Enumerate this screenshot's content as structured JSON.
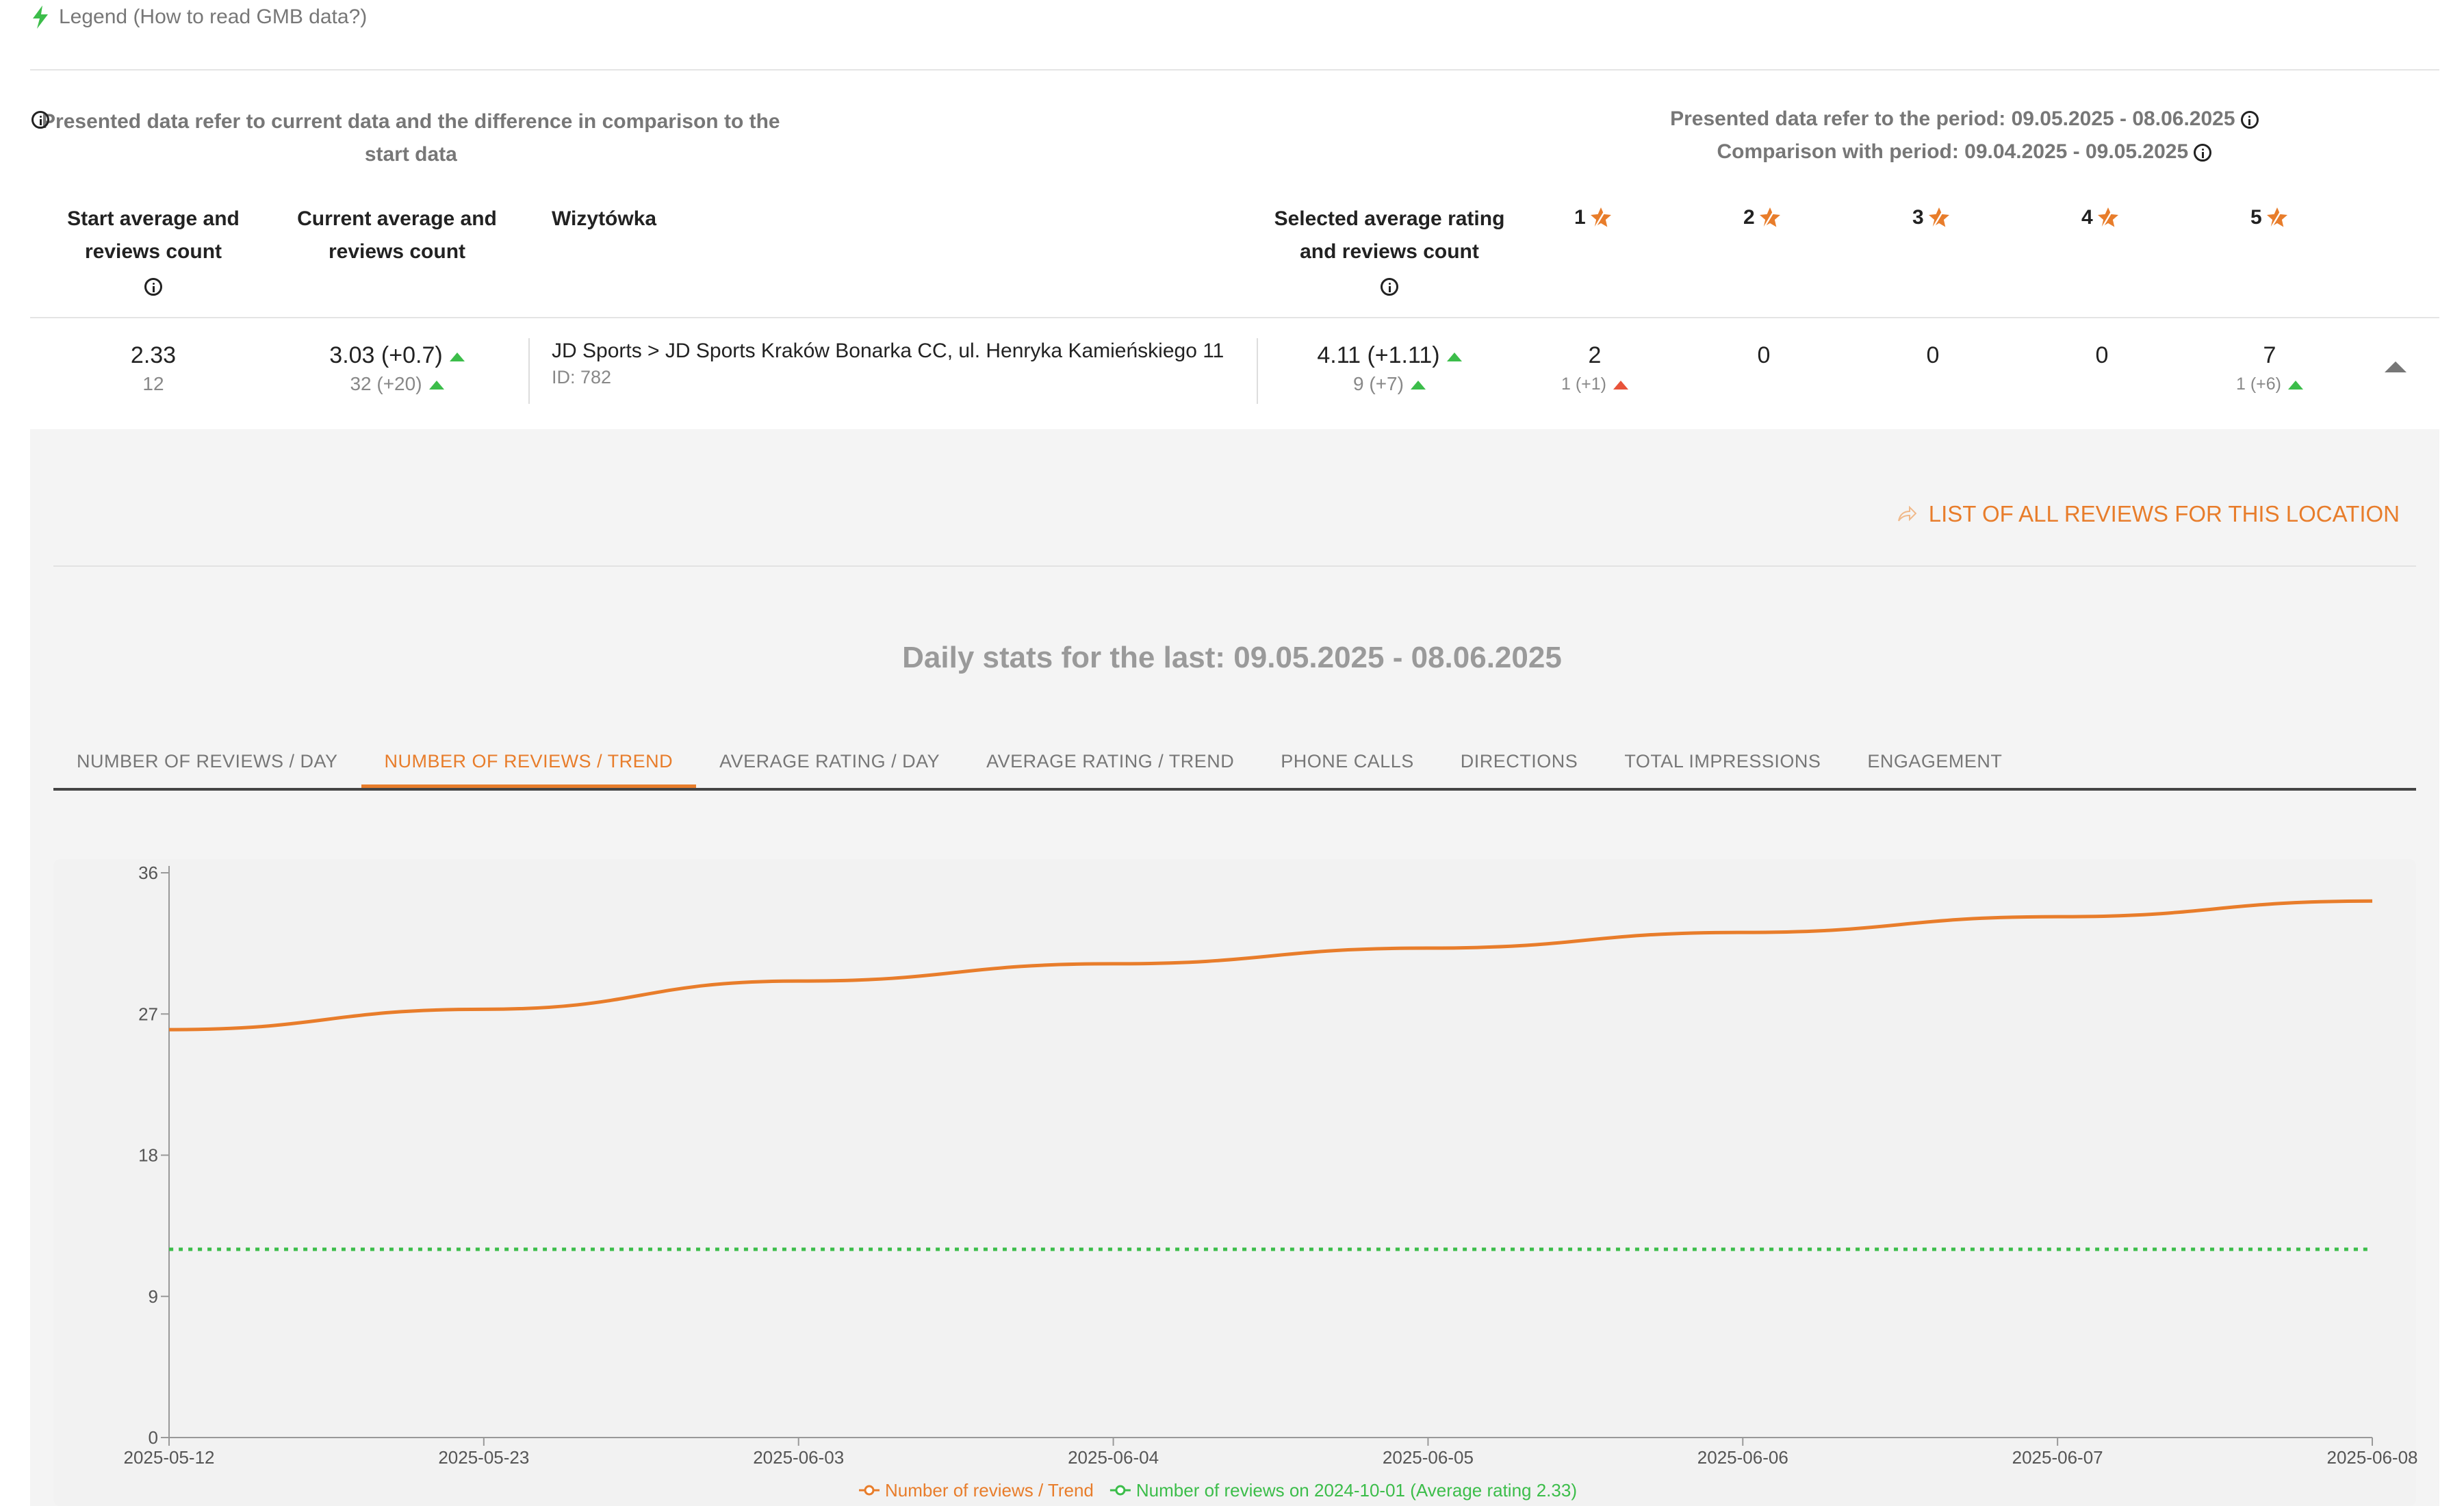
{
  "legend": {
    "label": "Legend (How to read GMB data?)",
    "icon": "lightning-icon"
  },
  "info_left": "Presented data refer to current data and the difference in comparison to the start data",
  "info_right": {
    "period": "Presented data refer to the period: 09.05.2025 - 08.06.2025",
    "comparison": "Comparison with period: 09.04.2025 - 09.05.2025"
  },
  "table": {
    "headers": {
      "start": [
        "Start average and",
        "reviews count"
      ],
      "current": [
        "Current average and",
        "reviews count"
      ],
      "wizytowka": "Wizytówka",
      "selected": [
        "Selected average rating",
        "and reviews count"
      ],
      "stars": [
        "1",
        "2",
        "3",
        "4",
        "5"
      ]
    },
    "row": {
      "start_avg": "2.33",
      "start_count": "12",
      "current_avg": "3.03 (+0.7)",
      "current_count": "32 (+20)",
      "location": "JD Sports > JD Sports Kraków Bonarka CC, ul. Henryka Kamieńskiego 11",
      "location_id": "ID: 782",
      "selected_avg": "4.11 (+1.11)",
      "selected_count": "9 (+7)",
      "star_counts": [
        "2",
        "0",
        "0",
        "0",
        "7"
      ],
      "star_1_sub": "1 (+1)",
      "star_5_sub": "1 (+6)"
    }
  },
  "reviews_link": "LIST OF ALL REVIEWS FOR THIS LOCATION",
  "daily_title": "Daily stats for the last: 09.05.2025 - 08.06.2025",
  "tabs": [
    "NUMBER OF REVIEWS / DAY",
    "NUMBER OF REVIEWS / TREND",
    "AVERAGE RATING / DAY",
    "AVERAGE RATING / TREND",
    "PHONE CALLS",
    "DIRECTIONS",
    "TOTAL IMPRESSIONS",
    "ENGAGEMENT"
  ],
  "active_tab": 1,
  "colors": {
    "accent": "#e87d2b",
    "up": "#3cbd4a",
    "down": "#e8533a",
    "baseline": "#3cbd4a"
  },
  "chart_data": {
    "type": "line",
    "categories": [
      "2025-05-12",
      "2025-05-23",
      "2025-06-03",
      "2025-06-04",
      "2025-06-05",
      "2025-06-06",
      "2025-06-07",
      "2025-06-08"
    ],
    "yticks": [
      0,
      9,
      18,
      27,
      36
    ],
    "ylim": [
      0,
      36
    ],
    "series": [
      {
        "name": "Number of reviews / Trend",
        "color": "#e87d2b",
        "style": "solid",
        "values": [
          26,
          27.3,
          29.1,
          30.2,
          31.2,
          32.2,
          33.2,
          34.2
        ]
      },
      {
        "name": "Number of reviews on 2024-10-01 (Average rating 2.33)",
        "color": "#3cbd4a",
        "style": "dotted",
        "values": [
          12,
          12,
          12,
          12,
          12,
          12,
          12,
          12
        ]
      }
    ],
    "legend_position": "bottom-center"
  }
}
